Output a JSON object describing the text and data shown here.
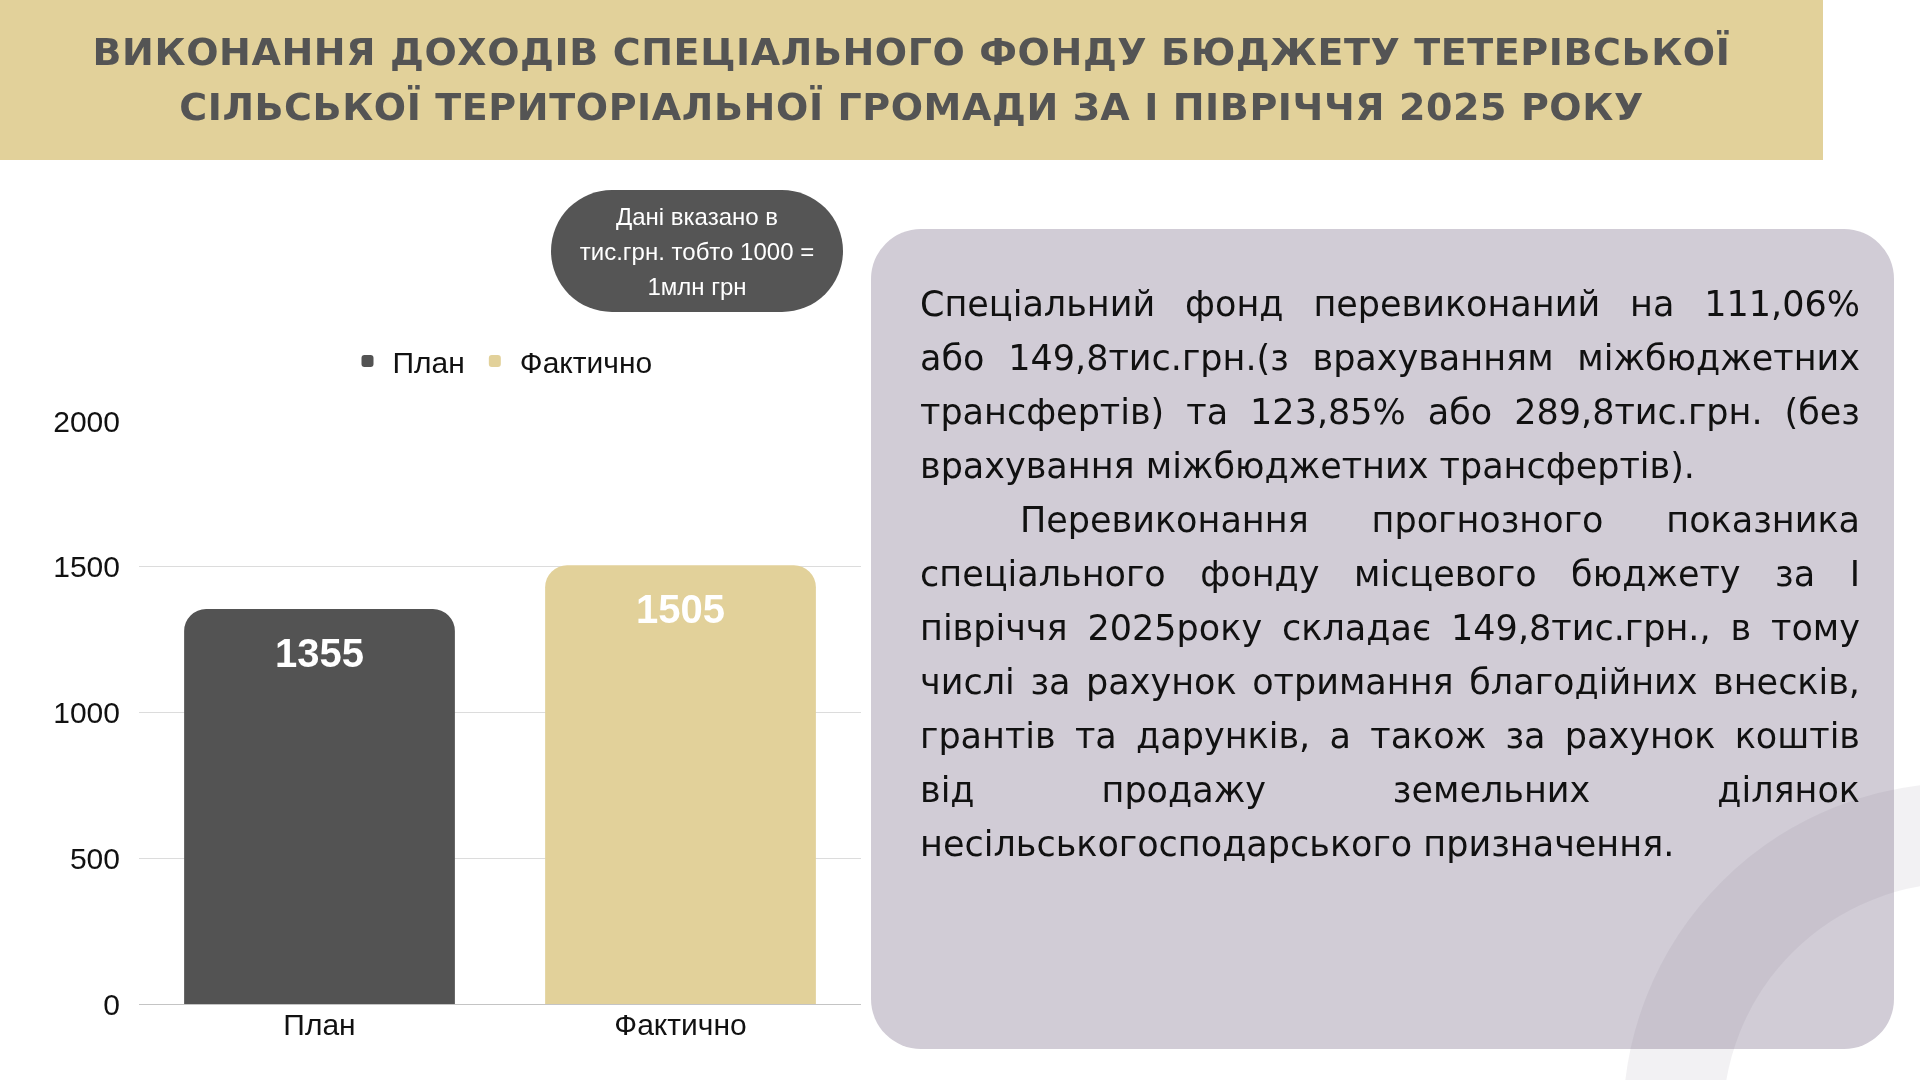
{
  "chart_data": {
    "type": "bar",
    "title": "ВИКОНАННЯ ДОХОДІВ СПЕЦІАЛЬНОГО ФОНДУ БЮДЖЕТУ ТЕТЕРІВСЬКОЇ СІЛЬСЬКОЇ ТЕРИТОРІАЛЬНОЇ ГРОМАДИ ЗА І ПІВРІЧЧЯ 2025 РОКУ",
    "categories": [
      "План",
      "Фактично"
    ],
    "series": [
      {
        "name": "План",
        "color": "#535353",
        "values": [
          1355,
          null
        ]
      },
      {
        "name": "Фактично",
        "color": "#e2d19a",
        "values": [
          null,
          1505
        ]
      }
    ],
    "ylim": [
      0,
      2000
    ],
    "yticks": [
      0,
      500,
      1000,
      1500,
      2000
    ],
    "grid": "y",
    "legend": "top",
    "data_labels": true,
    "annotations": [
      "Дані вказано в тис.грн. тобто 1000 = 1млн грн",
      "Спеціальний фонд перевиконаний на 111,06% або 149,8тис.грн.(з врахуванням міжбюджетних трансфертів) та 123,85% або 289,8тис.грн. (без врахування міжбюджетних трансфертів).",
      "Перевиконання прогнозного показника спеціального фонду місцевого бюджету за І півріччя 2025року складає 149,8тис.грн., в тому числі за рахунок отримання благодійних внесків, грантів та дарунків, а також за рахунок коштів від продажу земельних ділянок несільськогосподарського призначення."
    ]
  }
}
